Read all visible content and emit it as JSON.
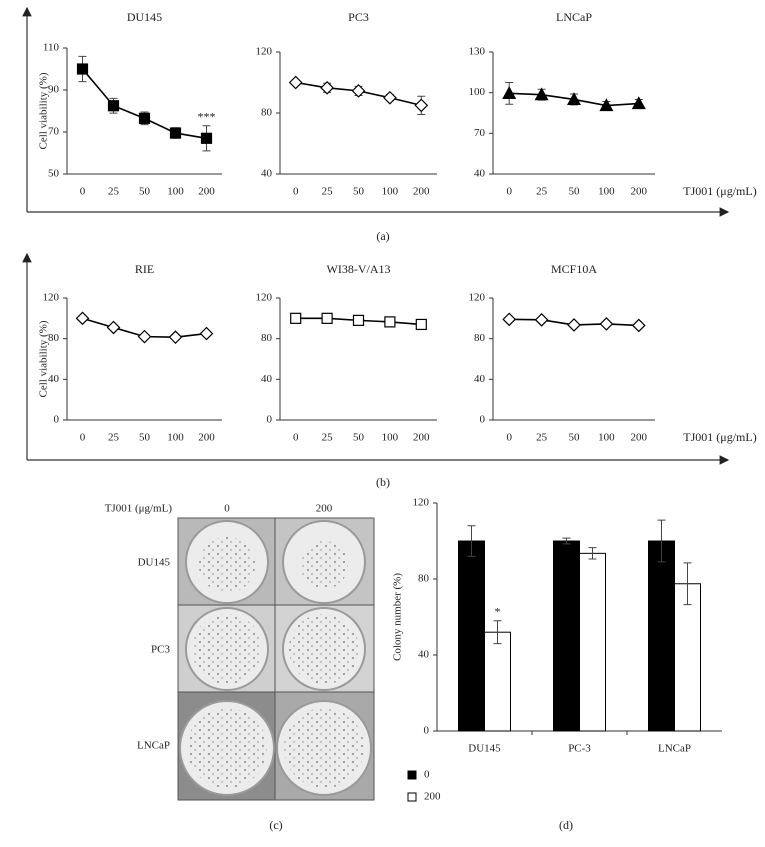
{
  "chart_data": [
    {
      "type": "line",
      "title": "DU145",
      "ylabel": "Cell viability (%)",
      "categories": [
        "0",
        "25",
        "50",
        "100",
        "200"
      ],
      "series": [
        {
          "color": "#000000",
          "marker": "square",
          "marker_fill": "#000000",
          "values": [
            100,
            82.5,
            76.5,
            69.5,
            67
          ],
          "errors": [
            6,
            3.5,
            3,
            2.5,
            6
          ]
        }
      ],
      "ylim": [
        50,
        110
      ],
      "yticks": [
        50,
        70,
        90,
        110
      ],
      "annotation": {
        "text": "***",
        "category": "200"
      }
    },
    {
      "type": "line",
      "title": "PC3",
      "categories": [
        "0",
        "25",
        "50",
        "100",
        "200"
      ],
      "series": [
        {
          "color": "#000000",
          "marker": "diamond",
          "marker_fill": "#ffffff",
          "values": [
            100,
            96.5,
            94.5,
            90,
            85
          ],
          "errors": [
            1.5,
            3,
            3,
            2,
            6
          ]
        }
      ],
      "ylim": [
        40,
        120
      ],
      "yticks": [
        40,
        80,
        120
      ]
    },
    {
      "type": "line",
      "title": "LNCaP",
      "xlabel": "TJ001 (μg/mL)",
      "categories": [
        "0",
        "25",
        "50",
        "100",
        "200"
      ],
      "series": [
        {
          "color": "#000000",
          "marker": "triangle",
          "marker_fill": "#000000",
          "values": [
            99.5,
            98.5,
            95,
            90.5,
            92
          ],
          "errors": [
            8,
            4,
            4,
            3,
            3
          ]
        }
      ],
      "ylim": [
        40,
        130
      ],
      "yticks": [
        40,
        70,
        100,
        130
      ]
    },
    {
      "type": "line",
      "title": "RIE",
      "ylabel": "Cell viability (%)",
      "categories": [
        "0",
        "25",
        "50",
        "100",
        "200"
      ],
      "series": [
        {
          "color": "#000000",
          "marker": "diamond",
          "marker_fill": "#ffffff",
          "values": [
            100,
            91,
            82,
            81.5,
            85
          ],
          "errors": [
            0,
            0,
            0,
            0,
            0
          ]
        }
      ],
      "ylim": [
        0,
        120
      ],
      "yticks": [
        0,
        40,
        80,
        120
      ]
    },
    {
      "type": "line",
      "title": "WI38-V/A13",
      "categories": [
        "0",
        "25",
        "50",
        "100",
        "200"
      ],
      "series": [
        {
          "color": "#000000",
          "marker": "square",
          "marker_fill": "#ffffff",
          "values": [
            100,
            100,
            98,
            96.5,
            94
          ],
          "errors": [
            0,
            0,
            0,
            0,
            0
          ]
        }
      ],
      "ylim": [
        0,
        120
      ],
      "yticks": [
        0,
        40,
        80,
        120
      ]
    },
    {
      "type": "line",
      "title": "MCF10A",
      "xlabel": "TJ001 (μg/mL)",
      "categories": [
        "0",
        "25",
        "50",
        "100",
        "200"
      ],
      "series": [
        {
          "color": "#000000",
          "marker": "diamond",
          "marker_fill": "#ffffff",
          "values": [
            99,
            98.5,
            93.5,
            94.5,
            93
          ],
          "errors": [
            0,
            0,
            0,
            0,
            0
          ]
        }
      ],
      "ylim": [
        0,
        120
      ],
      "yticks": [
        0,
        40,
        80,
        120
      ]
    },
    {
      "type": "bar",
      "ylabel": "Colony number (%)",
      "categories": [
        "DU145",
        "PC-3",
        "LNCaP"
      ],
      "series": [
        {
          "name": "0",
          "color": "#000000",
          "values": [
            100,
            100,
            100
          ],
          "errors": [
            8,
            1.5,
            11
          ]
        },
        {
          "name": "200",
          "color": "#ffffff",
          "values": [
            52,
            93.5,
            77.5
          ],
          "errors": [
            6,
            3,
            11
          ]
        }
      ],
      "ylim": [
        0,
        120
      ],
      "yticks": [
        0,
        40,
        80,
        120
      ],
      "annotation": {
        "text": "*",
        "category": "DU145",
        "series": "200"
      }
    }
  ],
  "panel_labels": [
    "(a)",
    "(b)",
    "(c)",
    "(d)"
  ],
  "photo_grid": {
    "header": "TJ001 (μg/mL)",
    "columns": [
      "0",
      "200"
    ],
    "rows": [
      "DU145",
      "PC3",
      "LNCaP"
    ]
  }
}
